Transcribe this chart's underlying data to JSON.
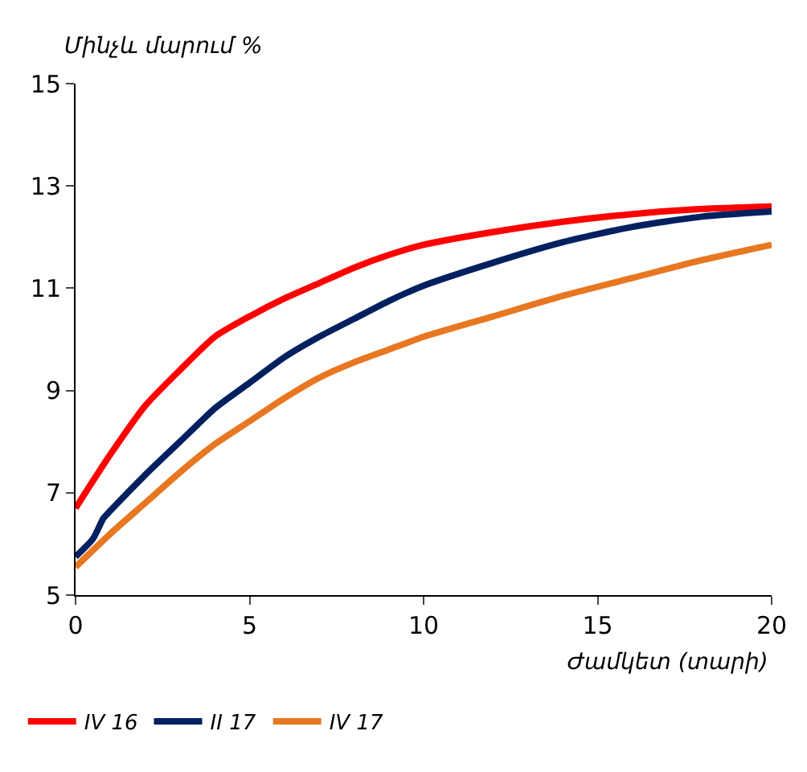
{
  "chart_data": {
    "type": "line",
    "ylabel": "Մինչև մարում %",
    "xlabel": "Ժամկետ (տարի)",
    "xlim": [
      0,
      20
    ],
    "xticks": [
      0,
      5,
      10,
      15,
      20
    ],
    "ylim": [
      5,
      15
    ],
    "yticks": [
      5,
      7,
      9,
      11,
      13,
      15
    ],
    "legend": "bottom",
    "marker": "none",
    "line_style": "solid",
    "series": [
      {
        "name": "IV 16",
        "color": "#ff0000",
        "x": [
          0,
          1,
          2,
          3,
          4,
          5,
          6,
          7,
          8,
          9,
          10,
          12,
          14,
          16,
          18,
          20
        ],
        "values": [
          6.7,
          7.75,
          8.7,
          9.4,
          10.05,
          10.45,
          10.8,
          11.1,
          11.4,
          11.65,
          11.85,
          12.1,
          12.3,
          12.45,
          12.55,
          12.6
        ]
      },
      {
        "name": "II 17",
        "color": "#002060",
        "x": [
          0,
          0.5,
          0.8,
          1,
          2,
          3,
          4,
          5,
          6,
          7,
          8,
          9,
          10,
          12,
          14,
          16,
          18,
          20
        ],
        "values": [
          5.75,
          6.1,
          6.5,
          6.65,
          7.35,
          8.0,
          8.65,
          9.15,
          9.65,
          10.05,
          10.4,
          10.75,
          11.05,
          11.5,
          11.9,
          12.2,
          12.4,
          12.5
        ]
      },
      {
        "name": "IV 17",
        "color": "#e87722",
        "x": [
          0,
          1,
          2,
          3,
          4,
          5,
          6,
          7,
          8,
          9,
          10,
          12,
          14,
          16,
          18,
          20
        ],
        "values": [
          5.55,
          6.2,
          6.8,
          7.4,
          7.95,
          8.4,
          8.85,
          9.25,
          9.55,
          9.8,
          10.05,
          10.45,
          10.85,
          11.2,
          11.55,
          11.85
        ]
      }
    ]
  }
}
